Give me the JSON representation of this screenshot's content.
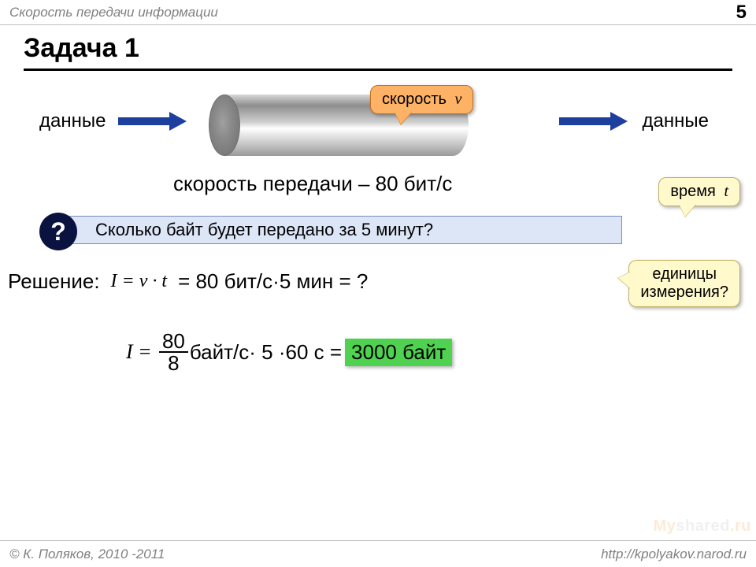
{
  "header": {
    "title": "Скорость передачи информации",
    "page_number": "5"
  },
  "slide": {
    "title": "Задача 1"
  },
  "diagram": {
    "left_label": "данные",
    "right_label": "данные",
    "speed_callout": "скорость",
    "speed_var": "v",
    "speed_text": "скорость передачи – 80 бит/с",
    "time_callout": "время",
    "time_var": "t",
    "arrow_color": "#1d3f9e",
    "pipe_gradient": [
      "#d8d8d8",
      "#8e8e8e",
      "#cfcfcf",
      "#ffffff",
      "#c8c8c8",
      "#9a9a9a"
    ]
  },
  "question": {
    "badge": "?",
    "text": "Сколько байт будет передано за 5 минут?",
    "bg_color": "#dde6f7",
    "badge_color": "#0a123f"
  },
  "callouts": {
    "units_line1": "единицы",
    "units_line2": "измерения?",
    "speed_bg": "#feb265",
    "note_bg": "#fff9cc"
  },
  "solution": {
    "label": "Решение:",
    "formula": "I = v · t",
    "eq1": "= 80 бит/с·5 мин = ?",
    "I_eq": "I =",
    "frac_top": "80",
    "frac_bot": "8",
    "mid": "байт/с· 5 ·60 с =",
    "result": "3000 байт",
    "result_bg": "#4fd24f"
  },
  "footer": {
    "copyright": "© К. Поляков, 2010 -2011",
    "url": "http://kpolyakov.narod.ru"
  },
  "watermark": {
    "my": "My",
    "shared": "shared",
    "ru": ".ru"
  },
  "colors": {
    "text": "#000000",
    "muted": "#808080",
    "rule": "#000000",
    "bg": "#ffffff"
  },
  "fonts": {
    "body": "Arial",
    "math": "Times New Roman",
    "title_size_pt": 26,
    "body_size_pt": 20
  }
}
